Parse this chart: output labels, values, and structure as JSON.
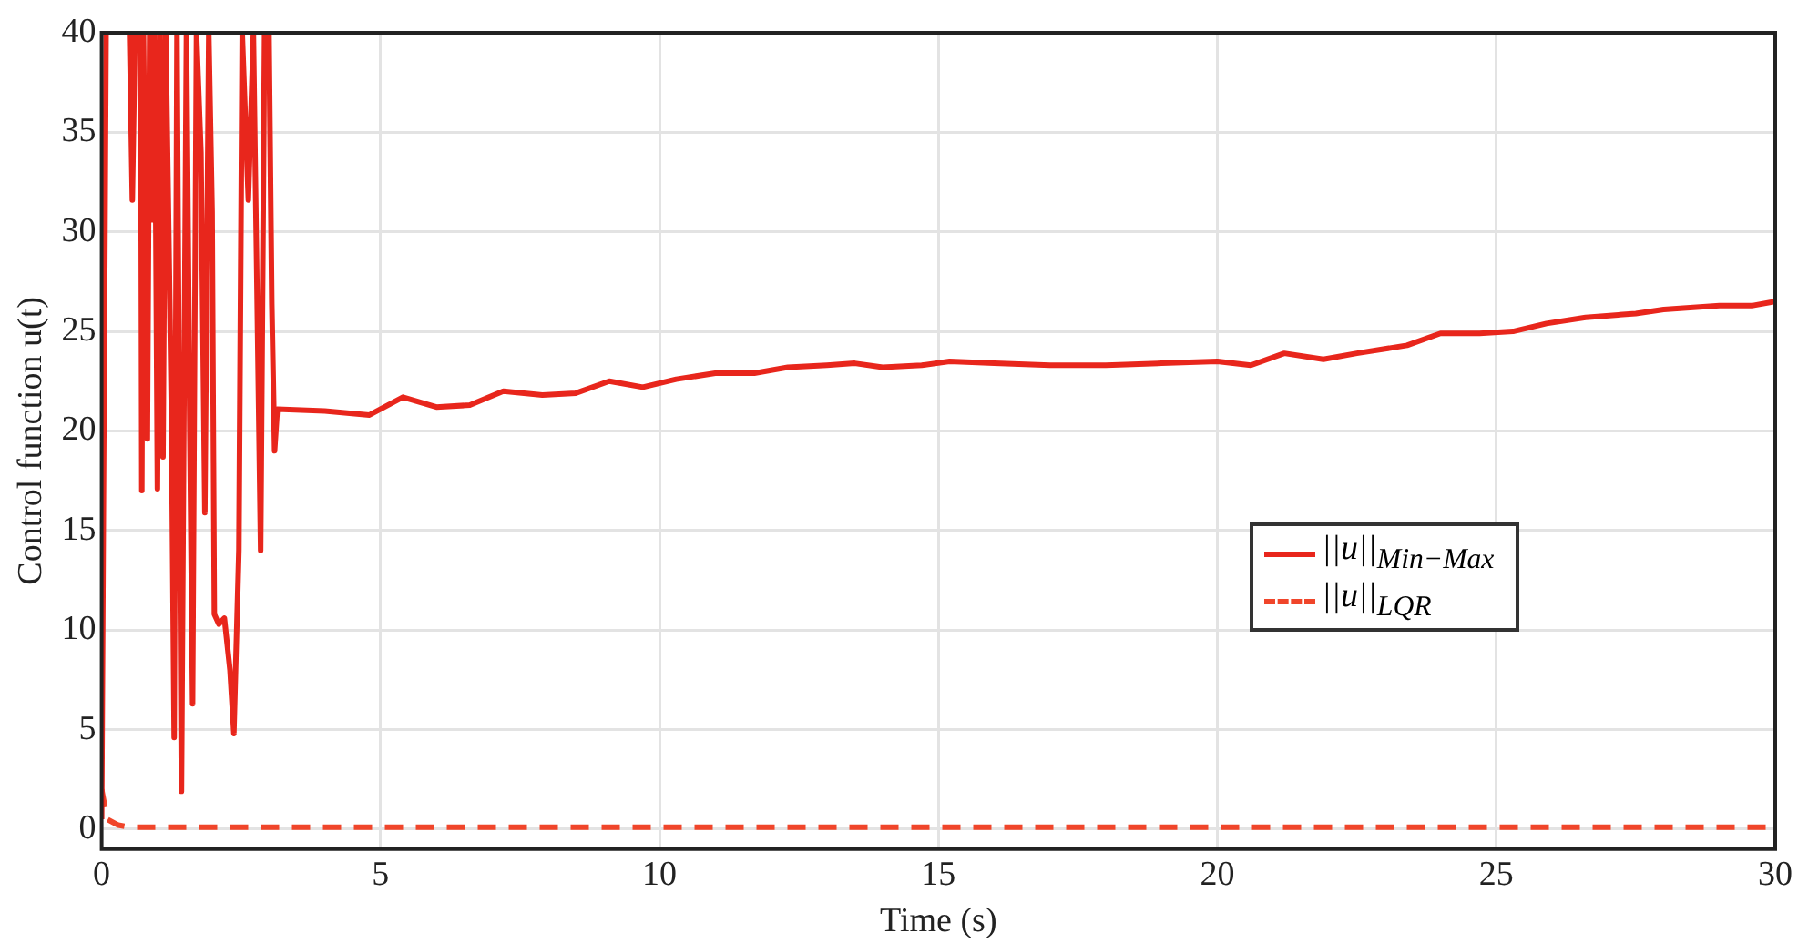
{
  "chart_data": {
    "type": "line",
    "xlabel": "Time (s)",
    "ylabel": "Control function u(t)",
    "xlim": [
      0,
      30
    ],
    "ylim": [
      -1,
      40
    ],
    "xticks": [
      0,
      5,
      10,
      15,
      20,
      25,
      30
    ],
    "yticks": [
      0,
      5,
      10,
      15,
      20,
      25,
      30,
      35,
      40
    ],
    "grid": true,
    "legend": "right",
    "marker": "none",
    "series": [
      {
        "name": "||u||$_{Min−Max}$",
        "color": "#e8261c",
        "line_style": "solid",
        "x": [
          0,
          0.08,
          0.5,
          0.55,
          0.6,
          0.7,
          0.72,
          0.75,
          0.82,
          0.86,
          0.9,
          0.95,
          1.0,
          1.05,
          1.1,
          1.15,
          1.25,
          1.3,
          1.35,
          1.43,
          1.52,
          1.58,
          1.63,
          1.7,
          1.78,
          1.85,
          1.92,
          1.98,
          2.02,
          2.1,
          2.2,
          2.3,
          2.37,
          2.46,
          2.52,
          2.63,
          2.72,
          2.85,
          2.92,
          3.0,
          3.05,
          3.1,
          3.15,
          4,
          4.8,
          5.4,
          6,
          6.6,
          7.2,
          7.9,
          8.5,
          9.1,
          9.7,
          10.3,
          11,
          11.7,
          12.3,
          13,
          13.5,
          14,
          14.7,
          15.2,
          16,
          17,
          18,
          19,
          20,
          20.6,
          21.2,
          21.9,
          22.5,
          23.4,
          24,
          24.7,
          25.3,
          25.9,
          26.6,
          27.5,
          28,
          29,
          29.6,
          30
        ],
        "values": [
          0.5,
          40,
          40,
          31.6,
          40,
          40,
          17,
          40,
          19.6,
          40,
          30.6,
          40,
          17.1,
          40,
          18.7,
          40,
          21,
          4.6,
          40,
          1.9,
          40,
          20,
          6.3,
          40,
          34,
          15.9,
          40,
          31,
          10.8,
          10.3,
          10.6,
          8,
          4.8,
          14,
          40,
          31.6,
          40,
          14,
          40,
          40,
          26.4,
          19,
          21.1,
          21,
          20.8,
          21.7,
          21.2,
          21.3,
          22,
          21.8,
          21.9,
          22.5,
          22.2,
          22.6,
          22.9,
          22.9,
          23.2,
          23.3,
          23.4,
          23.2,
          23.3,
          23.5,
          23.4,
          23.3,
          23.3,
          23.4,
          23.5,
          23.3,
          23.9,
          23.6,
          23.9,
          24.3,
          24.9,
          24.9,
          25,
          25.4,
          25.7,
          25.9,
          26.1,
          26.3,
          26.3,
          26.5
        ]
      },
      {
        "name": "||u||$_{LQR}$",
        "color": "#f0452a",
        "line_style": "dashed",
        "x": [
          0,
          0.1,
          0.3,
          0.5,
          30
        ],
        "values": [
          2,
          0.5,
          0.2,
          0.1,
          0.1
        ]
      }
    ]
  }
}
